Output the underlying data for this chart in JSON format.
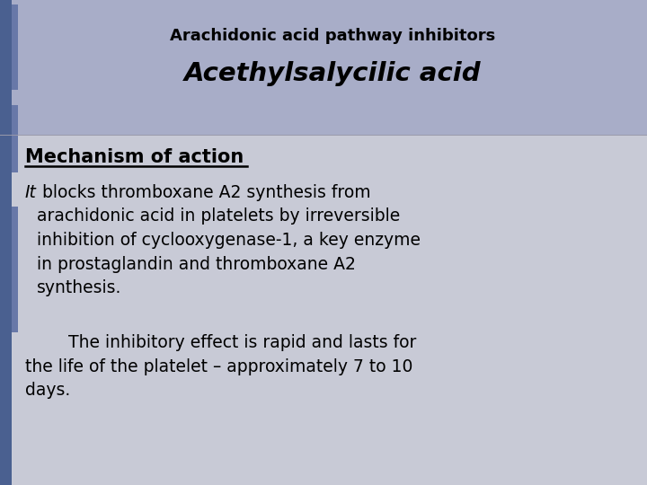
{
  "bg_top_color": "#a8adc8",
  "bg_bottom_color": "#c8cad6",
  "sidebar_color": "#4a6090",
  "sidebar_accent_color": "#6878a8",
  "title_line1": "Arachidonic acid pathway inhibitors",
  "title_line2": "Acethylsalycilic acid",
  "section_header": "Mechanism of action ",
  "para1_italic": "It",
  "para1_rest": " blocks thromboxane A2 synthesis from\narachidonic acid in platelets by irreversible\ninhibition of cyclooxygenase-1, a key enzyme\nin prostaglandin and thromboxane A2\nsynthesis.",
  "para2": "        The inhibitory effect is rapid and lasts for\nthe life of the platelet – approximately 7 to 10\ndays.",
  "title1_fontsize": 13,
  "title2_fontsize": 21,
  "header_fontsize": 15,
  "body_fontsize": 13.5
}
